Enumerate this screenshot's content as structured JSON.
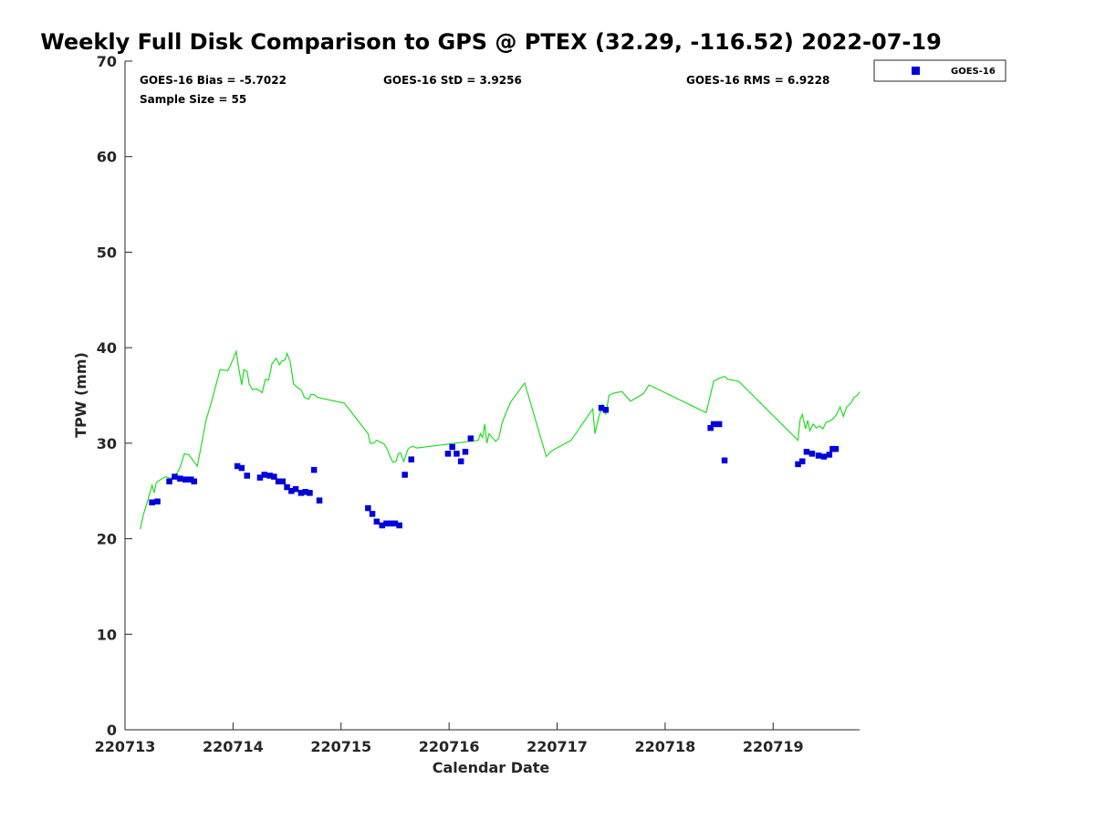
{
  "chart_data": {
    "type": "scatter",
    "title": "Weekly Full Disk Comparison to GPS @ PTEX (32.29, -116.52) 2022-07-19",
    "xlabel": "Calendar Date",
    "ylabel": "TPW (mm)",
    "xlim": [
      0,
      6.8
    ],
    "ylim": [
      0,
      70
    ],
    "x_tick_values": [
      0,
      1,
      2,
      3,
      4,
      5,
      6
    ],
    "x_tick_labels": [
      "220713",
      "220714",
      "220715",
      "220716",
      "220717",
      "220718",
      "220719"
    ],
    "y_ticks": [
      0,
      10,
      20,
      30,
      40,
      50,
      60,
      70
    ],
    "grid": false,
    "legend_position": "outside-top-right",
    "stats": {
      "bias": "GOES-16 Bias = -5.7022",
      "std": "GOES-16 StD = 3.9256",
      "rms": "GOES-16 RMS = 6.9228",
      "sample": "Sample Size = 55"
    },
    "colors": {
      "goes": "#0000dd",
      "gps": "#22dd22",
      "axis": "#262626"
    },
    "series": [
      {
        "name": "GOES-16",
        "marker": "square",
        "x": [
          0.25,
          0.3,
          0.41,
          0.46,
          0.51,
          0.56,
          0.61,
          0.64,
          1.04,
          1.08,
          1.13,
          1.25,
          1.29,
          1.34,
          1.38,
          1.42,
          1.46,
          1.5,
          1.54,
          1.58,
          1.63,
          1.67,
          1.71,
          1.75,
          1.8,
          2.25,
          2.29,
          2.33,
          2.38,
          2.42,
          2.46,
          2.5,
          2.54,
          2.59,
          2.65,
          2.99,
          3.03,
          3.07,
          3.11,
          3.15,
          3.2,
          4.41,
          4.45,
          5.42,
          5.45,
          5.5,
          5.55,
          6.23,
          6.27,
          6.31,
          6.36,
          6.42,
          6.47,
          6.52,
          6.55,
          6.58
        ],
        "y": [
          23.8,
          23.9,
          26.0,
          26.5,
          26.3,
          26.2,
          26.2,
          26.0,
          27.6,
          27.4,
          26.6,
          26.4,
          26.7,
          26.6,
          26.5,
          26.0,
          26.0,
          25.4,
          25.0,
          25.2,
          24.8,
          24.9,
          24.8,
          27.2,
          24.0,
          23.2,
          22.6,
          21.8,
          21.4,
          21.6,
          21.6,
          21.6,
          21.4,
          26.7,
          28.3,
          28.9,
          29.6,
          28.9,
          28.1,
          29.1,
          30.5,
          33.7,
          33.5,
          31.6,
          32.0,
          32.0,
          28.2,
          27.8,
          28.1,
          29.1,
          28.9,
          28.7,
          28.6,
          28.8,
          29.4,
          29.4
        ]
      },
      {
        "name": "GPS",
        "marker": "line",
        "x": [
          0.14,
          0.17,
          0.21,
          0.25,
          0.27,
          0.29,
          0.33,
          0.38,
          0.42,
          0.47,
          0.51,
          0.55,
          0.59,
          0.63,
          0.67,
          0.75,
          0.8,
          0.88,
          0.95,
          0.97,
          1.0,
          1.03,
          1.05,
          1.08,
          1.1,
          1.13,
          1.15,
          1.18,
          1.22,
          1.27,
          1.3,
          1.33,
          1.36,
          1.4,
          1.43,
          1.45,
          1.48,
          1.5,
          1.53,
          1.56,
          1.6,
          1.63,
          1.66,
          1.7,
          1.72,
          1.75,
          1.78,
          2.03,
          2.25,
          2.27,
          2.3,
          2.33,
          2.37,
          2.4,
          2.43,
          2.45,
          2.48,
          2.51,
          2.53,
          2.55,
          2.58,
          2.62,
          2.66,
          2.7,
          3.27,
          3.29,
          3.31,
          3.33,
          3.35,
          3.37,
          3.4,
          3.43,
          3.46,
          3.49,
          3.52,
          3.57,
          3.7,
          3.9,
          3.95,
          4.13,
          4.33,
          4.35,
          4.38,
          4.42,
          4.45,
          4.48,
          4.51,
          4.55,
          4.6,
          4.68,
          4.8,
          4.85,
          5.38,
          5.45,
          5.5,
          5.55,
          5.58,
          5.62,
          5.68,
          6.23,
          6.25,
          6.27,
          6.3,
          6.32,
          6.34,
          6.37,
          6.4,
          6.43,
          6.46,
          6.49,
          6.52,
          6.55,
          6.58,
          6.62,
          6.65,
          6.68,
          6.72,
          6.75,
          6.78,
          6.8
        ],
        "y": [
          21.0,
          22.5,
          24.0,
          25.6,
          24.8,
          25.9,
          26.2,
          26.5,
          26.3,
          26.6,
          27.5,
          28.9,
          28.8,
          28.2,
          27.6,
          32.4,
          34.3,
          37.7,
          37.6,
          38.0,
          38.8,
          39.6,
          38.0,
          36.1,
          37.7,
          37.5,
          36.2,
          35.6,
          35.7,
          35.3,
          36.7,
          36.6,
          38.3,
          38.9,
          38.2,
          38.6,
          38.7,
          39.4,
          38.5,
          36.2,
          35.8,
          35.6,
          34.8,
          34.6,
          35.1,
          35.1,
          34.8,
          34.2,
          31.0,
          30.0,
          30.0,
          30.3,
          30.1,
          29.9,
          29.3,
          28.7,
          28.0,
          28.1,
          28.9,
          29.0,
          28.1,
          29.4,
          29.7,
          29.5,
          30.3,
          31.0,
          30.6,
          32.0,
          30.0,
          31.0,
          30.6,
          30.2,
          30.5,
          32.1,
          33.0,
          34.3,
          36.3,
          28.6,
          29.2,
          30.3,
          33.6,
          31.0,
          32.5,
          34.0,
          33.0,
          35.0,
          35.2,
          35.3,
          35.4,
          34.4,
          35.2,
          36.1,
          33.2,
          36.5,
          36.8,
          37.0,
          36.7,
          36.6,
          36.5,
          30.3,
          32.5,
          33.0,
          31.5,
          32.4,
          31.3,
          32.0,
          31.6,
          31.8,
          31.5,
          32.2,
          32.3,
          32.5,
          32.9,
          33.8,
          32.8,
          33.8,
          34.2,
          34.8,
          35.0,
          35.4
        ],
        "in_legend": false
      }
    ]
  }
}
